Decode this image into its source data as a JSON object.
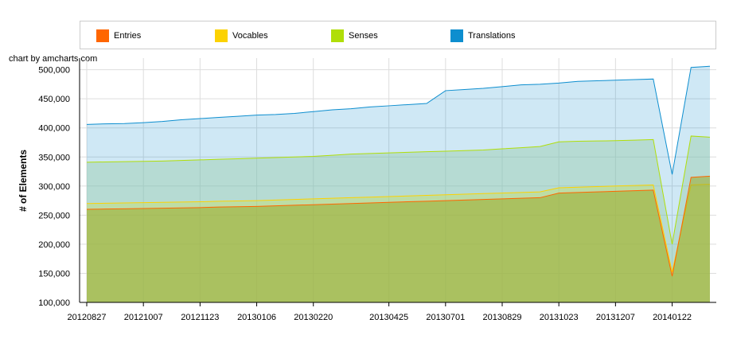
{
  "credit": "chart by amcharts.com",
  "legend": [
    {
      "label": "Entries",
      "color": "#ff6600"
    },
    {
      "label": "Vocables",
      "color": "#fcd202"
    },
    {
      "label": "Senses",
      "color": "#b0de09"
    },
    {
      "label": "Translations",
      "color": "#0d8ecf"
    }
  ],
  "chart_data": {
    "type": "area",
    "ylabel": "# of Elements",
    "xlabel": "",
    "ylim": [
      100000,
      520000
    ],
    "y_ticks": [
      "100,000",
      "150,000",
      "200,000",
      "250,000",
      "300,000",
      "350,000",
      "400,000",
      "450,000",
      "500,000"
    ],
    "x_tick_labels": [
      "20120827",
      "20121007",
      "20121123",
      "20130106",
      "20130220",
      "20130425",
      "20130701",
      "20130829",
      "20131023",
      "20131207",
      "20140122"
    ],
    "x": [
      "20120827",
      "20120912",
      "20120928",
      "20121007",
      "20121023",
      "20121108",
      "20121123",
      "20121209",
      "20121225",
      "20130106",
      "20130121",
      "20130205",
      "20130220",
      "20130308",
      "20130324",
      "20130409",
      "20130425",
      "20130511",
      "20130527",
      "20130701",
      "20130717",
      "20130802",
      "20130829",
      "20130914",
      "20130930",
      "20131023",
      "20131108",
      "20131124",
      "20131207",
      "20131223",
      "20140108",
      "20140122",
      "20140207",
      "20140223"
    ],
    "series": [
      {
        "name": "Entries",
        "color": "#ff6600",
        "values": [
          260000,
          260500,
          261000,
          261500,
          262000,
          262500,
          263000,
          264000,
          264500,
          265000,
          266000,
          267000,
          268000,
          269000,
          270000,
          271000,
          272000,
          273000,
          274000,
          275000,
          276000,
          277000,
          278000,
          279000,
          280000,
          288000,
          289000,
          290000,
          291000,
          292000,
          293000,
          145000,
          315000,
          317000
        ]
      },
      {
        "name": "Vocables",
        "color": "#fcd202",
        "values": [
          270000,
          270500,
          271000,
          271500,
          272000,
          272500,
          273000,
          274000,
          274500,
          275000,
          276000,
          277000,
          278000,
          279000,
          280000,
          281000,
          282000,
          283000,
          284000,
          285000,
          286000,
          287000,
          288000,
          289000,
          290000,
          297000,
          298000,
          299000,
          300000,
          301000,
          302000,
          152000,
          302000,
          303000
        ]
      },
      {
        "name": "Senses",
        "color": "#b0de09",
        "values": [
          341000,
          341500,
          342000,
          342500,
          343000,
          344000,
          345000,
          346000,
          347000,
          348000,
          349000,
          350000,
          351000,
          353000,
          355000,
          356000,
          357000,
          358000,
          359000,
          360000,
          361000,
          362000,
          364000,
          366000,
          368000,
          376000,
          377000,
          377500,
          378000,
          379000,
          380000,
          200000,
          386000,
          384000
        ]
      },
      {
        "name": "Translations",
        "color": "#0d8ecf",
        "values": [
          406000,
          407000,
          407500,
          409000,
          411000,
          414000,
          416000,
          418000,
          420000,
          422000,
          423000,
          425000,
          428000,
          431000,
          433000,
          436000,
          438000,
          440000,
          442000,
          464000,
          466000,
          468000,
          471000,
          474000,
          475000,
          477000,
          480000,
          481000,
          482000,
          483000,
          484000,
          320000,
          504000,
          506000
        ]
      }
    ]
  }
}
